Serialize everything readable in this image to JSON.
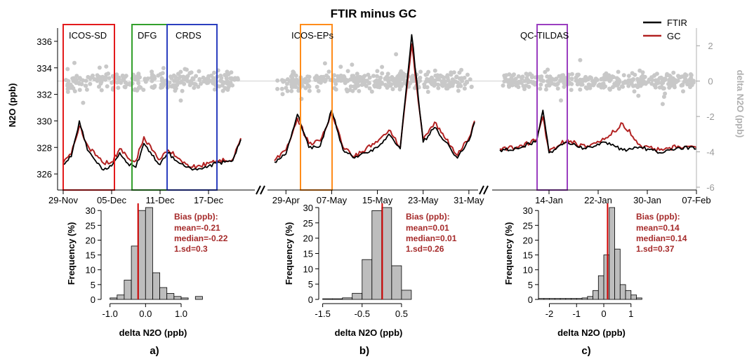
{
  "title": "FTIR minus GC",
  "colors": {
    "ftir": "#000000",
    "gc": "#b22222",
    "delta": "#c8c8c8",
    "bias_text": "#a52a2a",
    "hist_fill": "#bdbdbd",
    "hist_line": "#d00000",
    "icos_sd": "#e31a1c",
    "dfg": "#33a02c",
    "crds": "#2b3fbf",
    "icos_eps": "#ff8c1a",
    "qc_tildas": "#9a3ec0"
  },
  "main": {
    "left_axis_label": "N2O (ppb)",
    "right_axis_label": "delta N2O (ppb)",
    "left_ticks": [
      326,
      328,
      330,
      332,
      334,
      336
    ],
    "right_ticks": [
      2,
      0,
      -2,
      -4,
      -6
    ],
    "legend": [
      {
        "label": "FTIR",
        "color": "#000000"
      },
      {
        "label": "GC",
        "color": "#b22222"
      }
    ],
    "segments": [
      {
        "start": "29-Nov",
        "end": "21-Dec",
        "ticks": [
          "29-Nov",
          "05-Dec",
          "11-Dec",
          "17-Dec"
        ]
      },
      {
        "start": "27-Apr",
        "end": "01-Jun",
        "ticks": [
          "29-Apr",
          "07-May",
          "15-May",
          "23-May",
          "31-May"
        ]
      },
      {
        "start": "06-Jan",
        "end": "07-Feb",
        "ticks": [
          "14-Jan",
          "22-Jan",
          "30-Jan",
          "07-Feb"
        ]
      }
    ],
    "campaigns": [
      {
        "label": "ICOS-SD",
        "color_key": "icos_sd"
      },
      {
        "label": "DFG",
        "color_key": "dfg"
      },
      {
        "label": "CRDS",
        "color_key": "crds"
      },
      {
        "label": "ICOS-EPs",
        "color_key": "icos_eps"
      },
      {
        "label": "QC-TILDAS",
        "color_key": "qc_tildas"
      }
    ]
  },
  "chart_data": [
    {
      "type": "line",
      "title": "FTIR minus GC",
      "ylabel": "N2O (ppb)",
      "y2label": "delta N2O (ppb)",
      "ylim": [
        325,
        337
      ],
      "y2lim": [
        -6,
        3
      ],
      "series": [
        {
          "name": "FTIR",
          "y_axis": "left",
          "points": [
            [
              "29-Nov",
              326.7
            ],
            [
              "30-Nov",
              327.3
            ],
            [
              "01-Dec",
              330.0
            ],
            [
              "02-Dec",
              327.8
            ],
            [
              "03-Dec",
              327.0
            ],
            [
              "04-Dec",
              326.3
            ],
            [
              "05-Dec",
              326.6
            ],
            [
              "06-Dec",
              327.6
            ],
            [
              "07-Dec",
              326.8
            ],
            [
              "08-Dec",
              326.5
            ],
            [
              "09-Dec",
              328.3
            ],
            [
              "10-Dec",
              327.4
            ],
            [
              "11-Dec",
              326.7
            ],
            [
              "12-Dec",
              327.6
            ],
            [
              "13-Dec",
              327.0
            ],
            [
              "14-Dec",
              326.6
            ],
            [
              "15-Dec",
              326.3
            ],
            [
              "16-Dec",
              326.4
            ],
            [
              "17-Dec",
              326.6
            ],
            [
              "18-Dec",
              326.8
            ],
            [
              "19-Dec",
              326.9
            ],
            [
              "20-Dec",
              327.0
            ],
            [
              "21-Dec",
              328.6
            ],
            [
              "27-Apr",
              326.9
            ],
            [
              "29-Apr",
              327.5
            ],
            [
              "01-May",
              330.5
            ],
            [
              "03-May",
              328.0
            ],
            [
              "05-May",
              328.1
            ],
            [
              "07-May",
              330.8
            ],
            [
              "09-May",
              327.8
            ],
            [
              "11-May",
              327.2
            ],
            [
              "13-May",
              327.6
            ],
            [
              "15-May",
              328.0
            ],
            [
              "17-May",
              329.0
            ],
            [
              "19-May",
              327.9
            ],
            [
              "21-May",
              336.5
            ],
            [
              "23-May",
              328.4
            ],
            [
              "25-May",
              329.5
            ],
            [
              "27-May",
              328.4
            ],
            [
              "29-May",
              327.2
            ],
            [
              "31-May",
              328.5
            ],
            [
              "01-Jun",
              329.9
            ],
            [
              "06-Jan",
              327.8
            ],
            [
              "09-Jan",
              327.9
            ],
            [
              "12-Jan",
              328.5
            ],
            [
              "13-Jan",
              330.8
            ],
            [
              "14-Jan",
              327.6
            ],
            [
              "17-Jan",
              328.4
            ],
            [
              "20-Jan",
              327.9
            ],
            [
              "23-Jan",
              328.4
            ],
            [
              "26-Jan",
              327.8
            ],
            [
              "29-Jan",
              328.0
            ],
            [
              "01-Feb",
              327.6
            ],
            [
              "04-Feb",
              328.0
            ],
            [
              "07-Feb",
              327.9
            ]
          ]
        },
        {
          "name": "GC",
          "y_axis": "left",
          "points": [
            [
              "29-Nov",
              326.8
            ],
            [
              "30-Nov",
              327.5
            ],
            [
              "01-Dec",
              329.6
            ],
            [
              "02-Dec",
              328.2
            ],
            [
              "03-Dec",
              327.4
            ],
            [
              "04-Dec",
              326.8
            ],
            [
              "05-Dec",
              326.9
            ],
            [
              "06-Dec",
              327.9
            ],
            [
              "07-Dec",
              327.2
            ],
            [
              "08-Dec",
              327.0
            ],
            [
              "09-Dec",
              328.8
            ],
            [
              "10-Dec",
              327.8
            ],
            [
              "11-Dec",
              327.1
            ],
            [
              "12-Dec",
              327.8
            ],
            [
              "13-Dec",
              327.3
            ],
            [
              "14-Dec",
              326.9
            ],
            [
              "15-Dec",
              326.5
            ],
            [
              "16-Dec",
              326.6
            ],
            [
              "17-Dec",
              326.8
            ],
            [
              "18-Dec",
              327.0
            ],
            [
              "19-Dec",
              327.0
            ],
            [
              "20-Dec",
              327.1
            ],
            [
              "21-Dec",
              328.7
            ],
            [
              "27-Apr",
              327.0
            ],
            [
              "29-Apr",
              327.8
            ],
            [
              "01-May",
              330.2
            ],
            [
              "03-May",
              328.3
            ],
            [
              "05-May",
              328.5
            ],
            [
              "07-May",
              330.6
            ],
            [
              "09-May",
              328.0
            ],
            [
              "11-May",
              327.3
            ],
            [
              "13-May",
              327.9
            ],
            [
              "15-May",
              328.4
            ],
            [
              "17-May",
              329.3
            ],
            [
              "19-May",
              328.0
            ],
            [
              "21-May",
              335.8
            ],
            [
              "23-May",
              328.6
            ],
            [
              "25-May",
              329.9
            ],
            [
              "27-May",
              328.6
            ],
            [
              "29-May",
              327.4
            ],
            [
              "31-May",
              328.7
            ],
            [
              "01-Jun",
              330.0
            ],
            [
              "06-Jan",
              327.9
            ],
            [
              "09-Jan",
              328.0
            ],
            [
              "12-Jan",
              328.6
            ],
            [
              "13-Jan",
              330.3
            ],
            [
              "14-Jan",
              327.7
            ],
            [
              "17-Jan",
              328.6
            ],
            [
              "20-Jan",
              328.0
            ],
            [
              "23-Jan",
              328.6
            ],
            [
              "26-Jan",
              329.8
            ],
            [
              "29-Jan",
              328.1
            ],
            [
              "01-Feb",
              327.8
            ],
            [
              "04-Feb",
              328.1
            ],
            [
              "07-Feb",
              328.0
            ]
          ]
        },
        {
          "name": "delta",
          "y_axis": "right",
          "type": "scatter",
          "approx_mean": 0,
          "approx_spread": 0.35
        }
      ]
    },
    {
      "type": "bar",
      "panel": "a)",
      "xlabel": "delta N2O (ppb)",
      "ylabel": "Frequency (%)",
      "x_ticks": [
        "-1.0",
        "0.0",
        "1.0"
      ],
      "x_tick_values": [
        -1.0,
        0.0,
        1.0
      ],
      "xlim": [
        -1.25,
        1.75
      ],
      "ylim": [
        0,
        31
      ],
      "y_ticks": [
        0,
        5,
        10,
        15,
        20,
        25,
        30
      ],
      "bin_edges": [
        -1.0,
        -0.8,
        -0.6,
        -0.4,
        -0.2,
        0.0,
        0.2,
        0.4,
        0.6,
        0.8,
        1.0,
        1.2,
        1.4,
        1.6
      ],
      "values": [
        0.5,
        1.5,
        6.5,
        18,
        30,
        31,
        9,
        4,
        2,
        1,
        0.5,
        0,
        1
      ],
      "mean_line": -0.21,
      "bias_title": "Bias (ppb):",
      "stats": [
        "mean=-0.21",
        "median=-0.22",
        "1.sd=0.3"
      ]
    },
    {
      "type": "bar",
      "panel": "b)",
      "xlabel": "delta N2O (ppb)",
      "ylabel": "Frequency (%)",
      "x_ticks": [
        "-1.5",
        "-0.5",
        "0.5"
      ],
      "x_tick_values": [
        -1.5,
        -0.5,
        0.5
      ],
      "xlim": [
        -1.6,
        1.0
      ],
      "ylim": [
        0,
        30
      ],
      "y_ticks": [
        0,
        5,
        10,
        15,
        20,
        25,
        30
      ],
      "bin_edges": [
        -1.5,
        -1.25,
        -1.0,
        -0.75,
        -0.5,
        -0.25,
        0.0,
        0.25,
        0.5,
        0.75
      ],
      "values": [
        0.2,
        0.2,
        0.5,
        2,
        13,
        29,
        30,
        11,
        3
      ],
      "mean_line": 0.01,
      "bias_title": "Bias (ppb):",
      "stats": [
        "mean=0.01",
        "median=0.01",
        "1.sd=0.26"
      ]
    },
    {
      "type": "bar",
      "panel": "c)",
      "xlabel": "delta N2O (ppb)",
      "ylabel": "Frequency (%)",
      "x_ticks": [
        "-2",
        "-1",
        "0",
        "1"
      ],
      "x_tick_values": [
        -2,
        -1,
        0,
        1
      ],
      "xlim": [
        -2.4,
        1.6
      ],
      "ylim": [
        0,
        31
      ],
      "y_ticks": [
        0,
        5,
        10,
        15,
        20,
        25,
        30
      ],
      "bin_edges": [
        -2.4,
        -2.2,
        -2.0,
        -1.8,
        -1.6,
        -1.4,
        -1.2,
        -1.0,
        -0.8,
        -0.6,
        -0.4,
        -0.2,
        0.0,
        0.2,
        0.4,
        0.6,
        0.8,
        1.0,
        1.2,
        1.4
      ],
      "values": [
        0.3,
        0.3,
        0.3,
        0.3,
        0.3,
        0.3,
        0.3,
        0.3,
        0.5,
        1,
        3,
        8,
        15,
        31,
        17,
        5,
        3,
        1.5,
        0.5
      ],
      "mean_line": 0.14,
      "bias_title": "Bias (ppb):",
      "stats": [
        "mean=0.14",
        "median=0.14",
        "1.sd=0.37"
      ]
    }
  ]
}
